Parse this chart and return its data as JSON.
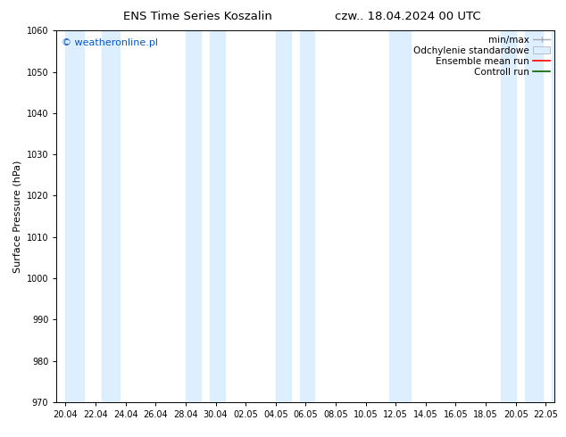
{
  "title_left": "ENS Time Series Koszalin",
  "title_right": "czw.. 18.04.2024 00 UTC",
  "ylabel": "Surface Pressure (hPa)",
  "ylim": [
    970,
    1060
  ],
  "yticks": [
    970,
    980,
    990,
    1000,
    1010,
    1020,
    1030,
    1040,
    1050,
    1060
  ],
  "xtick_labels": [
    "20.04",
    "22.04",
    "24.04",
    "26.04",
    "28.04",
    "30.04",
    "02.05",
    "04.05",
    "06.05",
    "08.05",
    "10.05",
    "12.05",
    "14.05",
    "16.05",
    "18.05",
    "20.05",
    "22.05"
  ],
  "watermark": "© weatheronline.pl",
  "watermark_color": "#0055cc",
  "band_color": "#ddeeff",
  "legend_labels": [
    "min/max",
    "Odchylenie standardowe",
    "Ensemble mean run",
    "Controll run"
  ],
  "background_color": "#ffffff",
  "fig_width": 6.34,
  "fig_height": 4.9,
  "dpi": 100,
  "band_ranges": [
    [
      0,
      0.6
    ],
    [
      1.2,
      1.8
    ],
    [
      4.0,
      4.5
    ],
    [
      4.8,
      5.3
    ],
    [
      7.0,
      7.5
    ],
    [
      7.8,
      8.3
    ],
    [
      10.8,
      11.5
    ],
    [
      14.5,
      15.0
    ],
    [
      15.3,
      15.9
    ],
    [
      16.2,
      16.8
    ]
  ],
  "title_fontsize": 9.5,
  "ylabel_fontsize": 8,
  "tick_fontsize": 7,
  "legend_fontsize": 7.5
}
